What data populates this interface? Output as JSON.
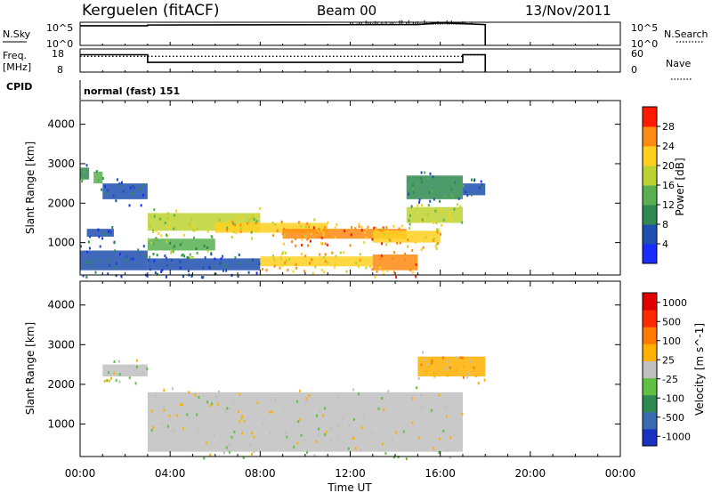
{
  "header": {
    "station": "Kerguelen (fitACF)",
    "beam": "Beam 00",
    "date": "13/Nov/2011"
  },
  "nsky_panel": {
    "left_label": "N.Sky",
    "left_ticks": [
      "10^5",
      "10^0"
    ],
    "right_ticks": [
      "10^5",
      "10^0"
    ],
    "right_label": "N.Search",
    "right_label_style": "dotted"
  },
  "freq_panel": {
    "left_label_1": "Freq.",
    "left_label_2": "[MHz]",
    "left_ticks": [
      "18",
      "8"
    ],
    "right_ticks": [
      "60",
      "0"
    ],
    "right_label": "Nave",
    "right_label_style": "dotted"
  },
  "cpid": {
    "label": "CPID",
    "value": "normal (fast) 151"
  },
  "chart_data": [
    {
      "type": "line",
      "name": "nsky",
      "x_hours": [
        0.0,
        3.0,
        3.0,
        15.0,
        16.0,
        17.0,
        18.0,
        18.0
      ],
      "y_level": [
        0.85,
        0.85,
        0.88,
        0.9,
        0.97,
        0.94,
        0.9,
        0.0
      ],
      "xlim": [
        0,
        24
      ]
    },
    {
      "type": "line",
      "name": "frequency_and_nave",
      "freq_x_hours": [
        0.0,
        3.0,
        3.0,
        17.0,
        17.0,
        18.0,
        18.0
      ],
      "freq_level": [
        0.75,
        0.75,
        0.42,
        0.42,
        0.75,
        0.75,
        0.0
      ],
      "nave_x_hours": [
        0.0,
        17.0,
        17.0,
        18.0
      ],
      "nave_level": [
        0.68,
        0.68,
        0.75,
        0.75
      ]
    },
    {
      "type": "heatmap",
      "name": "power",
      "ylabel": "Slant Range [km]",
      "xlabel": "",
      "ylim": [
        180,
        4600
      ],
      "y_ticks": [
        "1000",
        "2000",
        "3000",
        "4000"
      ],
      "y_tick_values": [
        1000,
        2000,
        3000,
        4000
      ],
      "colorbar_label": "Power [dB]",
      "colorbar_ticks": [
        "4",
        "8",
        "12",
        "16",
        "20",
        "24",
        "28"
      ],
      "colorbar_colors": [
        "#1a2cff",
        "#1f4fb0",
        "#2e8a50",
        "#58b050",
        "#bcd230",
        "#ffd020",
        "#ff8a10",
        "#ff1a00"
      ],
      "regions": [
        {
          "t0": 0.0,
          "t1": 0.4,
          "r0": 2600,
          "r1": 2900,
          "level": 2
        },
        {
          "t0": 0.6,
          "t1": 1.0,
          "r0": 2500,
          "r1": 2800,
          "level": 3
        },
        {
          "t0": 1.0,
          "t1": 3.0,
          "r0": 2100,
          "r1": 2500,
          "level": 1
        },
        {
          "t0": 0.3,
          "t1": 1.5,
          "r0": 1150,
          "r1": 1350,
          "level": 1
        },
        {
          "t0": 3.0,
          "t1": 8.0,
          "r0": 1300,
          "r1": 1750,
          "level": 4
        },
        {
          "t0": 3.0,
          "t1": 6.0,
          "r0": 800,
          "r1": 1100,
          "level": 3
        },
        {
          "t0": 6.0,
          "t1": 11.0,
          "r0": 1250,
          "r1": 1500,
          "level": 5
        },
        {
          "t0": 9.0,
          "t1": 14.5,
          "r0": 1100,
          "r1": 1350,
          "level": 6
        },
        {
          "t0": 13.0,
          "t1": 16.0,
          "r0": 1000,
          "r1": 1300,
          "level": 5
        },
        {
          "t0": 14.5,
          "t1": 17.0,
          "r0": 1500,
          "r1": 1900,
          "level": 4
        },
        {
          "t0": 14.5,
          "t1": 17.0,
          "r0": 2100,
          "r1": 2700,
          "level": 2
        },
        {
          "t0": 17.0,
          "t1": 18.0,
          "r0": 2200,
          "r1": 2500,
          "level": 1
        },
        {
          "t0": 8.0,
          "t1": 13.0,
          "r0": 400,
          "r1": 650,
          "level": 5
        },
        {
          "t0": 13.0,
          "t1": 15.0,
          "r0": 300,
          "r1": 700,
          "level": 6
        },
        {
          "t0": 0.0,
          "t1": 3.0,
          "r0": 300,
          "r1": 800,
          "level": 1
        },
        {
          "t0": 3.0,
          "t1": 8.0,
          "r0": 300,
          "r1": 600,
          "level": 1
        }
      ]
    },
    {
      "type": "heatmap",
      "name": "velocity",
      "ylabel": "Slant Range [km]",
      "xlabel": "Time UT",
      "ylim": [
        180,
        4600
      ],
      "y_ticks": [
        "1000",
        "2000",
        "3000",
        "4000"
      ],
      "y_tick_values": [
        1000,
        2000,
        3000,
        4000
      ],
      "x_ticks": [
        "00:00",
        "04:00",
        "08:00",
        "12:00",
        "16:00",
        "20:00",
        "00:00"
      ],
      "x_tick_values": [
        0,
        4,
        8,
        12,
        16,
        20,
        24
      ],
      "xlim": [
        0,
        24
      ],
      "colorbar_label": "Velocity [m s^-1]",
      "colorbar_ticks": [
        "1000",
        "500",
        "100",
        "25",
        "-25",
        "-100",
        "-500",
        "-1000"
      ],
      "colorbar_colors": [
        "#1a30c0",
        "#3a6ab0",
        "#2e8a50",
        "#60c040",
        "#c0c0c0",
        "#ffb000",
        "#ff7a00",
        "#ff2a00",
        "#e00000"
      ],
      "regions": [
        {
          "t0": 3.0,
          "t1": 17.0,
          "r0": 300,
          "r1": 1800,
          "level": 4
        },
        {
          "t0": 1.0,
          "t1": 3.0,
          "r0": 2200,
          "r1": 2500,
          "level": 4
        },
        {
          "t0": 15.0,
          "t1": 18.0,
          "r0": 2200,
          "r1": 2700,
          "level": 5
        }
      ]
    }
  ]
}
